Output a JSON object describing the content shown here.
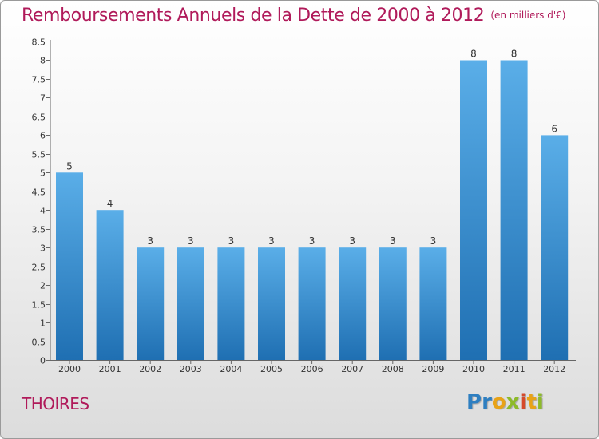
{
  "title": "Remboursements Annuels de la Dette de 2000 à 2012",
  "unit": "(en milliers d'€)",
  "commune": "THOIRES",
  "logo": {
    "text": "Proxiti"
  },
  "colors": {
    "title": "#b01a5a",
    "bar_top": "#5aaee8",
    "bar_bottom": "#1f6fb2",
    "axis": "#666666",
    "grid_tick": "#666666"
  },
  "chart_data": {
    "type": "bar",
    "title": "Remboursements Annuels de la Dette de 2000 à 2012",
    "categories": [
      "2000",
      "2001",
      "2002",
      "2003",
      "2004",
      "2005",
      "2006",
      "2007",
      "2008",
      "2009",
      "2010",
      "2011",
      "2012"
    ],
    "values": [
      5,
      4,
      3,
      3,
      3,
      3,
      3,
      3,
      3,
      3,
      8,
      8,
      6
    ],
    "value_labels": [
      "5",
      "4",
      "3",
      "3",
      "3",
      "3",
      "3",
      "3",
      "3",
      "3",
      "8",
      "8",
      "6"
    ],
    "y_ticks": [
      "0",
      "0.5",
      "1",
      "1.5",
      "2",
      "2.5",
      "3",
      "3.5",
      "4",
      "4.5",
      "5",
      "5.5",
      "6",
      "6.5",
      "7",
      "7.5",
      "8",
      "8.5"
    ],
    "ylim": [
      0,
      8.5
    ],
    "xlabel": "",
    "ylabel": "",
    "grid": false,
    "legend": "none"
  }
}
